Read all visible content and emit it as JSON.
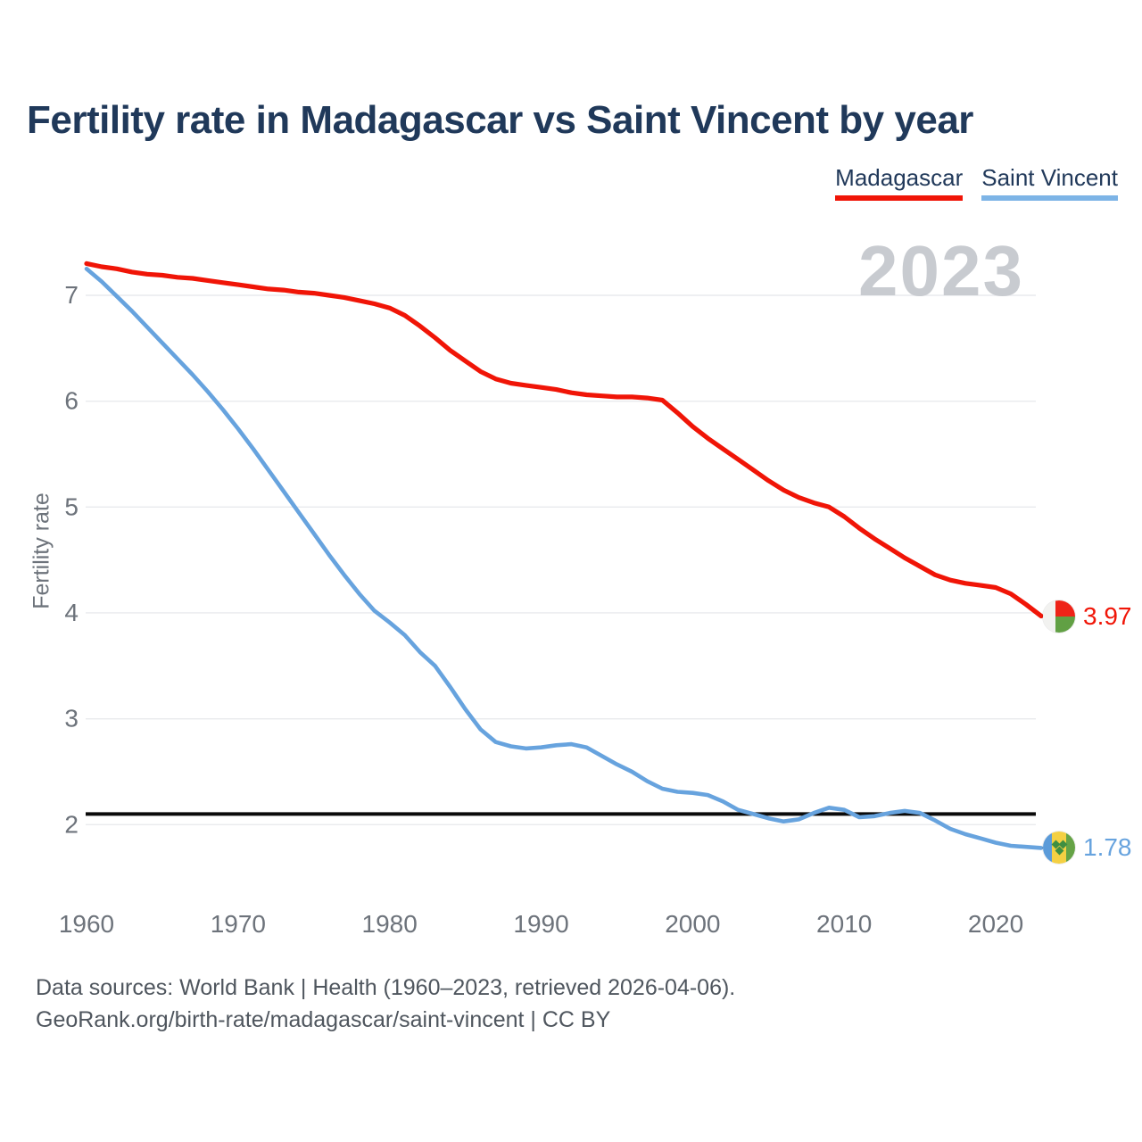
{
  "header": {
    "title": "Fertility rate in Madagascar vs Saint Vincent by year"
  },
  "legend": [
    {
      "label": "Madagascar",
      "color": "#f01507"
    },
    {
      "label": "Saint Vincent",
      "color": "#7db4e6"
    }
  ],
  "watermark": "2023",
  "footer": {
    "line1": "Data sources: World Bank | Health (1960–2023, retrieved 2026-04-06).",
    "line2": "GeoRank.org/birth-rate/madagascar/saint-vincent | CC BY"
  },
  "chart_data": {
    "type": "line",
    "title": "Fertility rate in Madagascar vs Saint Vincent by year",
    "xlabel": "",
    "ylabel": "Fertility rate",
    "legend_position": "top-right",
    "grid": true,
    "xlim": [
      1960,
      2023
    ],
    "ylim": [
      1.6,
      7.45
    ],
    "x_ticks": [
      1960,
      1970,
      1980,
      1990,
      2000,
      2010,
      2020
    ],
    "y_ticks": [
      2,
      3,
      4,
      5,
      6,
      7
    ],
    "reference_line": {
      "value": 2.1,
      "color": "#0a0a0a"
    },
    "years": [
      1960,
      1961,
      1962,
      1963,
      1964,
      1965,
      1966,
      1967,
      1968,
      1969,
      1970,
      1971,
      1972,
      1973,
      1974,
      1975,
      1976,
      1977,
      1978,
      1979,
      1980,
      1981,
      1982,
      1983,
      1984,
      1985,
      1986,
      1987,
      1988,
      1989,
      1990,
      1991,
      1992,
      1993,
      1994,
      1995,
      1996,
      1997,
      1998,
      1999,
      2000,
      2001,
      2002,
      2003,
      2004,
      2005,
      2006,
      2007,
      2008,
      2009,
      2010,
      2011,
      2012,
      2013,
      2014,
      2015,
      2016,
      2017,
      2018,
      2019,
      2020,
      2021,
      2022,
      2023
    ],
    "series": [
      {
        "name": "Madagascar",
        "color": "#f01507",
        "end_label": "3.97",
        "flag_icon": "madagascar-flag-icon",
        "values": [
          7.3,
          7.27,
          7.25,
          7.22,
          7.2,
          7.19,
          7.17,
          7.16,
          7.14,
          7.12,
          7.1,
          7.08,
          7.06,
          7.05,
          7.03,
          7.02,
          7.0,
          6.98,
          6.95,
          6.92,
          6.88,
          6.81,
          6.71,
          6.6,
          6.48,
          6.38,
          6.28,
          6.21,
          6.17,
          6.15,
          6.13,
          6.11,
          6.08,
          6.06,
          6.05,
          6.04,
          6.04,
          6.03,
          6.01,
          5.89,
          5.76,
          5.65,
          5.55,
          5.45,
          5.35,
          5.25,
          5.16,
          5.09,
          5.04,
          5.0,
          4.91,
          4.8,
          4.7,
          4.61,
          4.52,
          4.44,
          4.36,
          4.31,
          4.28,
          4.26,
          4.24,
          4.18,
          4.08,
          3.97
        ]
      },
      {
        "name": "Saint Vincent",
        "color": "#67a3de",
        "end_label": "1.78",
        "flag_icon": "saint-vincent-flag-icon",
        "values": [
          7.25,
          7.13,
          6.99,
          6.85,
          6.7,
          6.55,
          6.4,
          6.25,
          6.09,
          5.92,
          5.74,
          5.55,
          5.35,
          5.15,
          4.95,
          4.75,
          4.55,
          4.36,
          4.18,
          4.02,
          3.91,
          3.79,
          3.63,
          3.5,
          3.3,
          3.09,
          2.9,
          2.78,
          2.74,
          2.72,
          2.73,
          2.75,
          2.76,
          2.73,
          2.65,
          2.57,
          2.5,
          2.41,
          2.34,
          2.31,
          2.3,
          2.28,
          2.22,
          2.14,
          2.1,
          2.06,
          2.03,
          2.05,
          2.11,
          2.16,
          2.14,
          2.07,
          2.08,
          2.11,
          2.13,
          2.11,
          2.04,
          1.96,
          1.91,
          1.87,
          1.83,
          1.8,
          1.79,
          1.78
        ]
      }
    ]
  }
}
